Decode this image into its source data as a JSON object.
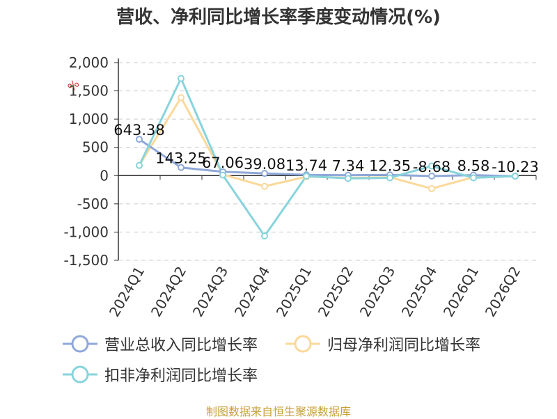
{
  "chart_data": {
    "type": "line",
    "title": "营收、净利同比增长率季度变动情况(%)",
    "ylabel": "%",
    "categories": [
      "2024Q1",
      "2024Q2",
      "2024Q3",
      "2024Q4",
      "2025Q1",
      "2025Q2",
      "2025Q3",
      "2025Q4",
      "2026Q1",
      "2026Q2"
    ],
    "ylim": [
      -1500,
      2000
    ],
    "yticks": [
      "2,000",
      "1,500",
      "1,000",
      "500",
      "0",
      "-500",
      "-1,000",
      "-1,500"
    ],
    "grid": true,
    "legend_position": "bottom",
    "series": [
      {
        "name": "营业总收入同比增长率",
        "color": "#8fa8d8",
        "values": [
          643.38,
          143.25,
          67.06,
          39.08,
          13.74,
          7.34,
          12.35,
          -8.68,
          8.58,
          -10.23
        ],
        "labels": [
          "643.38",
          "143.25",
          "67.06",
          "39.08",
          "13.74",
          "7.34",
          "12.35",
          "-8.68",
          "8.58",
          "-10.23"
        ]
      },
      {
        "name": "归母净利润同比增长率",
        "color": "#fbd89a",
        "values": [
          180,
          1380,
          20,
          -190,
          -20,
          -40,
          -30,
          -230,
          -30,
          -10
        ]
      },
      {
        "name": "扣非净利润同比增长率",
        "color": "#88d4dc",
        "values": [
          180,
          1720,
          10,
          -1070,
          -10,
          -50,
          -40,
          170,
          -40,
          -10
        ]
      }
    ]
  },
  "source_text": "制图数据来自恒生聚源数据库"
}
